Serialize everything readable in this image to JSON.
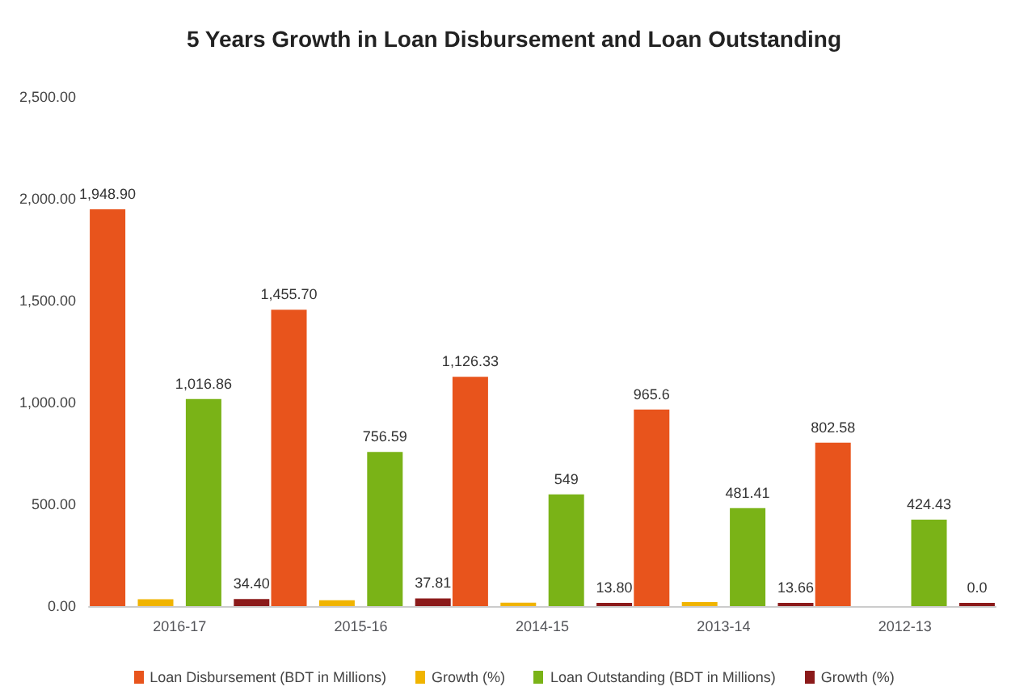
{
  "chart_data": {
    "type": "bar",
    "title": "5 Years Growth in Loan Disbursement and Loan Outstanding",
    "categories": [
      "2016-17",
      "2015-16",
      "2014-15",
      "2013-14",
      "2012-13"
    ],
    "series": [
      {
        "name": "Loan Disbursement (BDT in Millions)",
        "color": "#e8541c",
        "values": [
          1948.9,
          1455.7,
          1126.33,
          965.6,
          802.58
        ],
        "value_labels": [
          "1,948.90",
          "1,455.70",
          "1,126.33",
          "965.6",
          "802.58"
        ]
      },
      {
        "name": "Growth (%)",
        "color": "#f0b400",
        "values": [
          34,
          29,
          17,
          20,
          null
        ]
      },
      {
        "name": "Loan Outstanding (BDT in Millions)",
        "color": "#7ab317",
        "values": [
          1016.86,
          756.59,
          549,
          481.41,
          424.43
        ],
        "value_labels": [
          "1,016.86",
          "756.59",
          "549",
          "481.41",
          "424.43"
        ]
      },
      {
        "name": "Growth (%)",
        "color": "#8b1a1a",
        "values": [
          34.4,
          37.81,
          13.8,
          13.66,
          0
        ],
        "value_labels": [
          "34.40",
          "37.81",
          "13.80",
          "13.66",
          "0.0"
        ]
      }
    ],
    "ylim": [
      0,
      2500
    ],
    "yticks": [
      {
        "value": 0,
        "label": "0.00"
      },
      {
        "value": 500,
        "label": "500.00"
      },
      {
        "value": 1000,
        "label": "1,000.00"
      },
      {
        "value": 1500,
        "label": "1,500.00"
      },
      {
        "value": 2000,
        "label": "2,000.00"
      },
      {
        "value": 2500,
        "label": "2,500.00"
      }
    ],
    "grid": false,
    "legend": "bottom"
  }
}
